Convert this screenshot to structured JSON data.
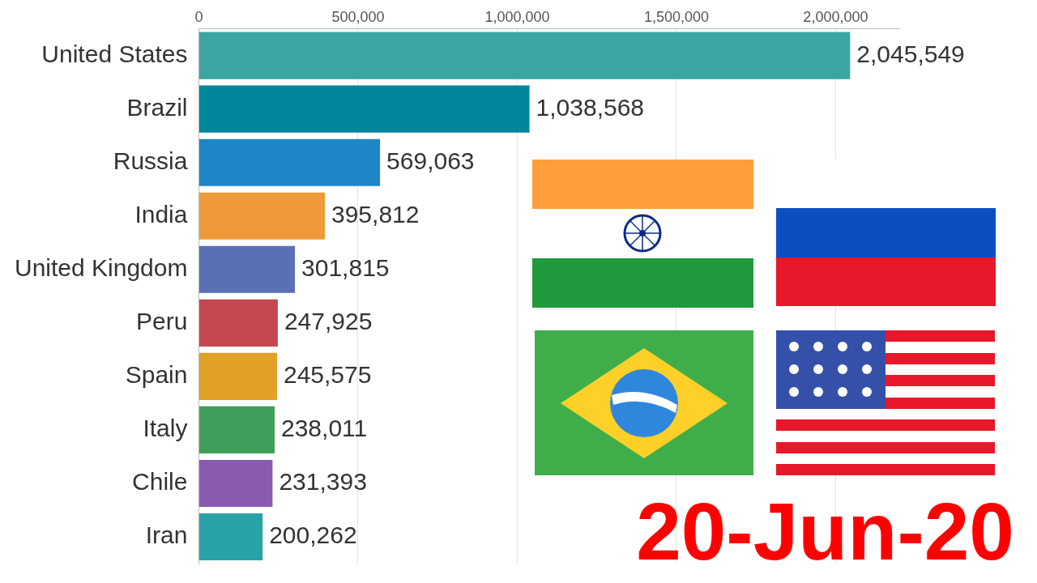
{
  "chart_data": {
    "type": "bar",
    "orientation": "horizontal",
    "categories": [
      "United States",
      "Brazil",
      "Russia",
      "India",
      "United Kingdom",
      "Peru",
      "Spain",
      "Italy",
      "Chile",
      "Iran"
    ],
    "values": [
      2045549,
      1038568,
      569063,
      395812,
      301815,
      247925,
      245575,
      238011,
      231393,
      200262
    ],
    "value_labels": [
      "2,045,549",
      "1,038,568",
      "569,063",
      "395,812",
      "301,815",
      "247,925",
      "245,575",
      "238,011",
      "231,393",
      "200,262"
    ],
    "colors": [
      "#3aa5a3",
      "#00879b",
      "#1e86c6",
      "#ef9a3a",
      "#5b6fb5",
      "#c4484f",
      "#e0a126",
      "#3f9e5a",
      "#8a5bb0",
      "#2aa3a8"
    ],
    "data_labels": true,
    "xlim": [
      0,
      2200000
    ],
    "xticks": [
      0,
      {
        "value": 500000,
        "label": "500,000"
      },
      {
        "value": 1000000,
        "label": "1,000,000"
      },
      {
        "value": 1500000,
        "label": "1,500,000"
      },
      {
        "value": 2000000,
        "label": "2,000,000"
      }
    ],
    "grid": true,
    "annotations": [
      "20-Jun-20"
    ]
  }
}
